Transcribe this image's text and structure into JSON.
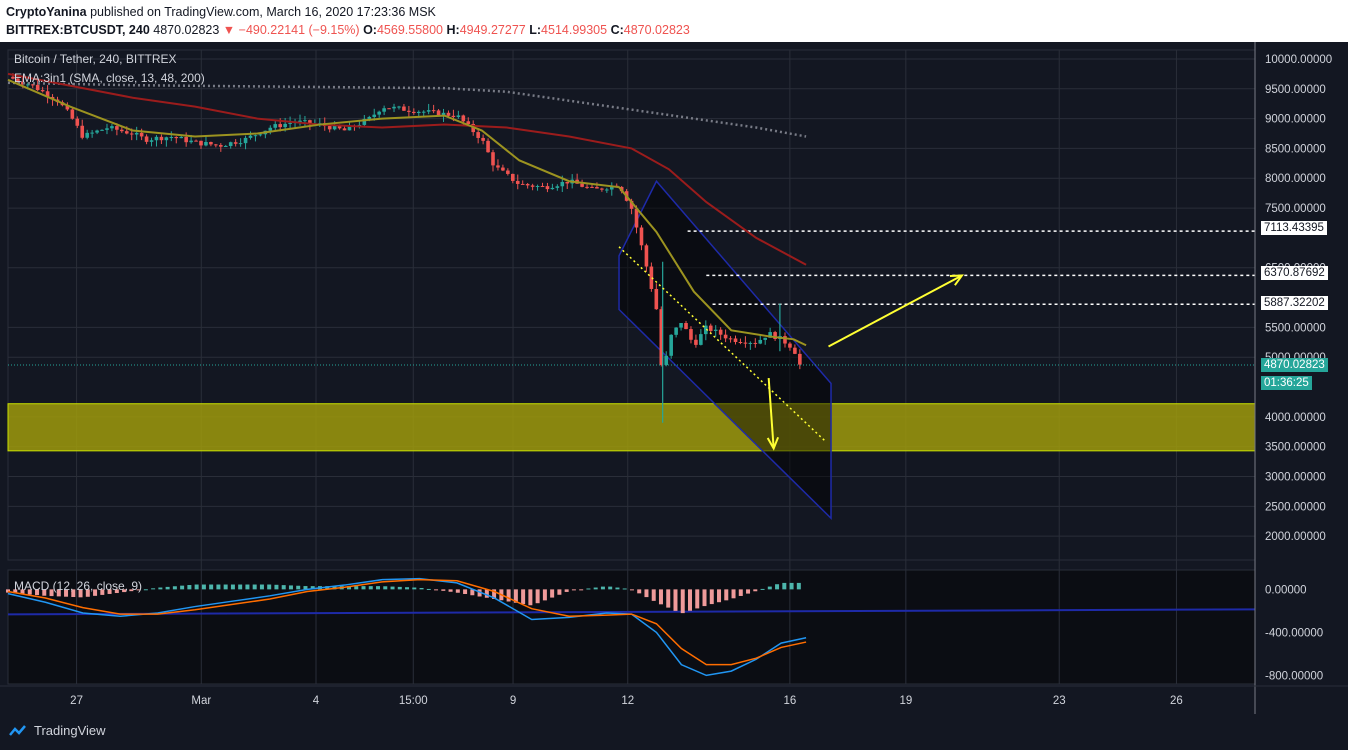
{
  "header": {
    "author": "CryptoYanina",
    "published_text": "published on TradingView.com, March 16, 2020 17:23:36 MSK",
    "symbol": "BITTREX:BTCUSDT, 240",
    "last": "4870.02823",
    "change": "−490.22141 (−9.15%)",
    "open_label": "O:",
    "open": "4569.55800",
    "high_label": "H:",
    "high": "4949.27277",
    "low_label": "L:",
    "low": "4514.99305",
    "close_label": "C:",
    "close": "4870.02823"
  },
  "legend": {
    "title": "Bitcoin / Tether, 240, BITTREX",
    "ema": "EMA:3in1 (SMA, close, 13, 48, 200)",
    "macd": "MACD (12, 26, close, 9)"
  },
  "current_price_tag": "4870.02823",
  "countdown_tag": "01:36:25",
  "level_tags": [
    "7113.43395",
    "6370.87692",
    "5887.32202"
  ],
  "footer": {
    "brand": "TradingView"
  },
  "colors": {
    "up": "#26a69a",
    "down": "#ef5350",
    "sma13": "#9c9320",
    "sma48": "#9b1c1c",
    "zone": "#9f9a0c",
    "arrow": "#ffff33",
    "channel": "#1e2aa8",
    "macd": "#2196f3",
    "signal": "#ff6d00"
  },
  "chart_data": {
    "type": "candlestick",
    "symbol": "Bitcoin / Tether, 240, BITTREX",
    "price_axis_ticks": [
      10000,
      9500,
      9000,
      8500,
      8000,
      7500,
      6500,
      5500,
      5000,
      4000,
      3500,
      3000,
      2500,
      2000
    ],
    "price_axis_labels": [
      "10000.00000",
      "9500.00000",
      "9000.00000",
      "8500.00000",
      "8000.00000",
      "7500.00000",
      "6500.00000",
      "5500.00000",
      "5000.00000",
      "4000.00000",
      "3500.00000",
      "3000.00000",
      "2500.00000",
      "2000.00000"
    ],
    "price_range": [
      1600,
      10150
    ],
    "time_axis": [
      {
        "label": "27",
        "t": 0.055
      },
      {
        "label": "Mar",
        "t": 0.155
      },
      {
        "label": "4",
        "t": 0.247
      },
      {
        "label": "15:00",
        "t": 0.325
      },
      {
        "label": "9",
        "t": 0.405
      },
      {
        "label": "12",
        "t": 0.497
      },
      {
        "label": "16",
        "t": 0.627
      },
      {
        "label": "19",
        "t": 0.72
      },
      {
        "label": "23",
        "t": 0.843
      },
      {
        "label": "26",
        "t": 0.937
      }
    ],
    "price_path": [
      [
        0.0,
        9700
      ],
      [
        0.02,
        9550
      ],
      [
        0.04,
        9300
      ],
      [
        0.05,
        9050
      ],
      [
        0.06,
        8700
      ],
      [
        0.08,
        8850
      ],
      [
        0.1,
        8750
      ],
      [
        0.11,
        8650
      ],
      [
        0.13,
        8700
      ],
      [
        0.15,
        8600
      ],
      [
        0.17,
        8550
      ],
      [
        0.19,
        8650
      ],
      [
        0.21,
        8850
      ],
      [
        0.23,
        8950
      ],
      [
        0.25,
        8900
      ],
      [
        0.27,
        8800
      ],
      [
        0.29,
        9000
      ],
      [
        0.3,
        9200
      ],
      [
        0.32,
        9150
      ],
      [
        0.34,
        9100
      ],
      [
        0.36,
        9050
      ],
      [
        0.37,
        8850
      ],
      [
        0.38,
        8650
      ],
      [
        0.39,
        8200
      ],
      [
        0.41,
        7900
      ],
      [
        0.43,
        7850
      ],
      [
        0.45,
        7950
      ],
      [
        0.47,
        7800
      ],
      [
        0.49,
        7900
      ],
      [
        0.5,
        7500
      ],
      [
        0.51,
        6700
      ],
      [
        0.52,
        5800
      ],
      [
        0.525,
        4600
      ],
      [
        0.53,
        5300
      ],
      [
        0.54,
        5600
      ],
      [
        0.55,
        5200
      ],
      [
        0.56,
        5500
      ],
      [
        0.58,
        5300
      ],
      [
        0.6,
        5250
      ],
      [
        0.61,
        5400
      ],
      [
        0.62,
        5300
      ],
      [
        0.63,
        5150
      ],
      [
        0.635,
        4870
      ]
    ],
    "sma13": [
      [
        0.0,
        9650
      ],
      [
        0.05,
        9200
      ],
      [
        0.1,
        8800
      ],
      [
        0.15,
        8700
      ],
      [
        0.2,
        8750
      ],
      [
        0.25,
        8900
      ],
      [
        0.3,
        9000
      ],
      [
        0.35,
        9050
      ],
      [
        0.38,
        8800
      ],
      [
        0.41,
        8300
      ],
      [
        0.45,
        7950
      ],
      [
        0.49,
        7850
      ],
      [
        0.52,
        7100
      ],
      [
        0.55,
        6100
      ],
      [
        0.58,
        5450
      ],
      [
        0.61,
        5350
      ],
      [
        0.63,
        5300
      ],
      [
        0.64,
        5200
      ]
    ],
    "sma48": [
      [
        0.0,
        9750
      ],
      [
        0.05,
        9550
      ],
      [
        0.1,
        9350
      ],
      [
        0.15,
        9200
      ],
      [
        0.2,
        9000
      ],
      [
        0.25,
        8900
      ],
      [
        0.3,
        8850
      ],
      [
        0.35,
        8900
      ],
      [
        0.4,
        8850
      ],
      [
        0.45,
        8700
      ],
      [
        0.5,
        8500
      ],
      [
        0.53,
        8150
      ],
      [
        0.56,
        7600
      ],
      [
        0.6,
        7000
      ],
      [
        0.64,
        6550
      ]
    ],
    "sma200": [
      [
        0.0,
        9600
      ],
      [
        0.05,
        9580
      ],
      [
        0.1,
        9560
      ],
      [
        0.15,
        9550
      ],
      [
        0.2,
        9540
      ],
      [
        0.25,
        9530
      ],
      [
        0.3,
        9520
      ],
      [
        0.35,
        9510
      ],
      [
        0.4,
        9450
      ],
      [
        0.45,
        9300
      ],
      [
        0.5,
        9150
      ],
      [
        0.55,
        9000
      ],
      [
        0.6,
        8850
      ],
      [
        0.64,
        8700
      ]
    ],
    "horizontal_levels": [
      7113.43395,
      6370.87692,
      5887.32202
    ],
    "last_price": 4870.02823,
    "support_zone": [
      3430,
      4220
    ],
    "macd": {
      "label": "MACD (12, 26, close, 9)",
      "axis_labels": [
        "0.00000",
        "-400.00000",
        "-800.00000"
      ],
      "axis_values": [
        0,
        -400,
        -800
      ],
      "range": [
        -880,
        180
      ],
      "macd_line": [
        [
          0.0,
          -40
        ],
        [
          0.03,
          -120
        ],
        [
          0.06,
          -220
        ],
        [
          0.09,
          -250
        ],
        [
          0.12,
          -220
        ],
        [
          0.15,
          -160
        ],
        [
          0.18,
          -110
        ],
        [
          0.21,
          -60
        ],
        [
          0.24,
          0
        ],
        [
          0.27,
          40
        ],
        [
          0.3,
          90
        ],
        [
          0.33,
          100
        ],
        [
          0.36,
          60
        ],
        [
          0.39,
          -80
        ],
        [
          0.42,
          -280
        ],
        [
          0.45,
          -260
        ],
        [
          0.48,
          -220
        ],
        [
          0.5,
          -230
        ],
        [
          0.52,
          -400
        ],
        [
          0.54,
          -700
        ],
        [
          0.56,
          -800
        ],
        [
          0.58,
          -760
        ],
        [
          0.6,
          -650
        ],
        [
          0.62,
          -500
        ],
        [
          0.64,
          -450
        ]
      ],
      "signal_line": [
        [
          0.0,
          -20
        ],
        [
          0.03,
          -80
        ],
        [
          0.06,
          -170
        ],
        [
          0.09,
          -230
        ],
        [
          0.12,
          -230
        ],
        [
          0.15,
          -190
        ],
        [
          0.18,
          -140
        ],
        [
          0.21,
          -90
        ],
        [
          0.24,
          -20
        ],
        [
          0.27,
          20
        ],
        [
          0.3,
          70
        ],
        [
          0.33,
          90
        ],
        [
          0.36,
          80
        ],
        [
          0.39,
          -20
        ],
        [
          0.42,
          -180
        ],
        [
          0.45,
          -250
        ],
        [
          0.48,
          -240
        ],
        [
          0.5,
          -230
        ],
        [
          0.52,
          -320
        ],
        [
          0.54,
          -550
        ],
        [
          0.56,
          -700
        ],
        [
          0.58,
          -700
        ],
        [
          0.6,
          -640
        ],
        [
          0.62,
          -540
        ],
        [
          0.64,
          -490
        ]
      ]
    }
  }
}
